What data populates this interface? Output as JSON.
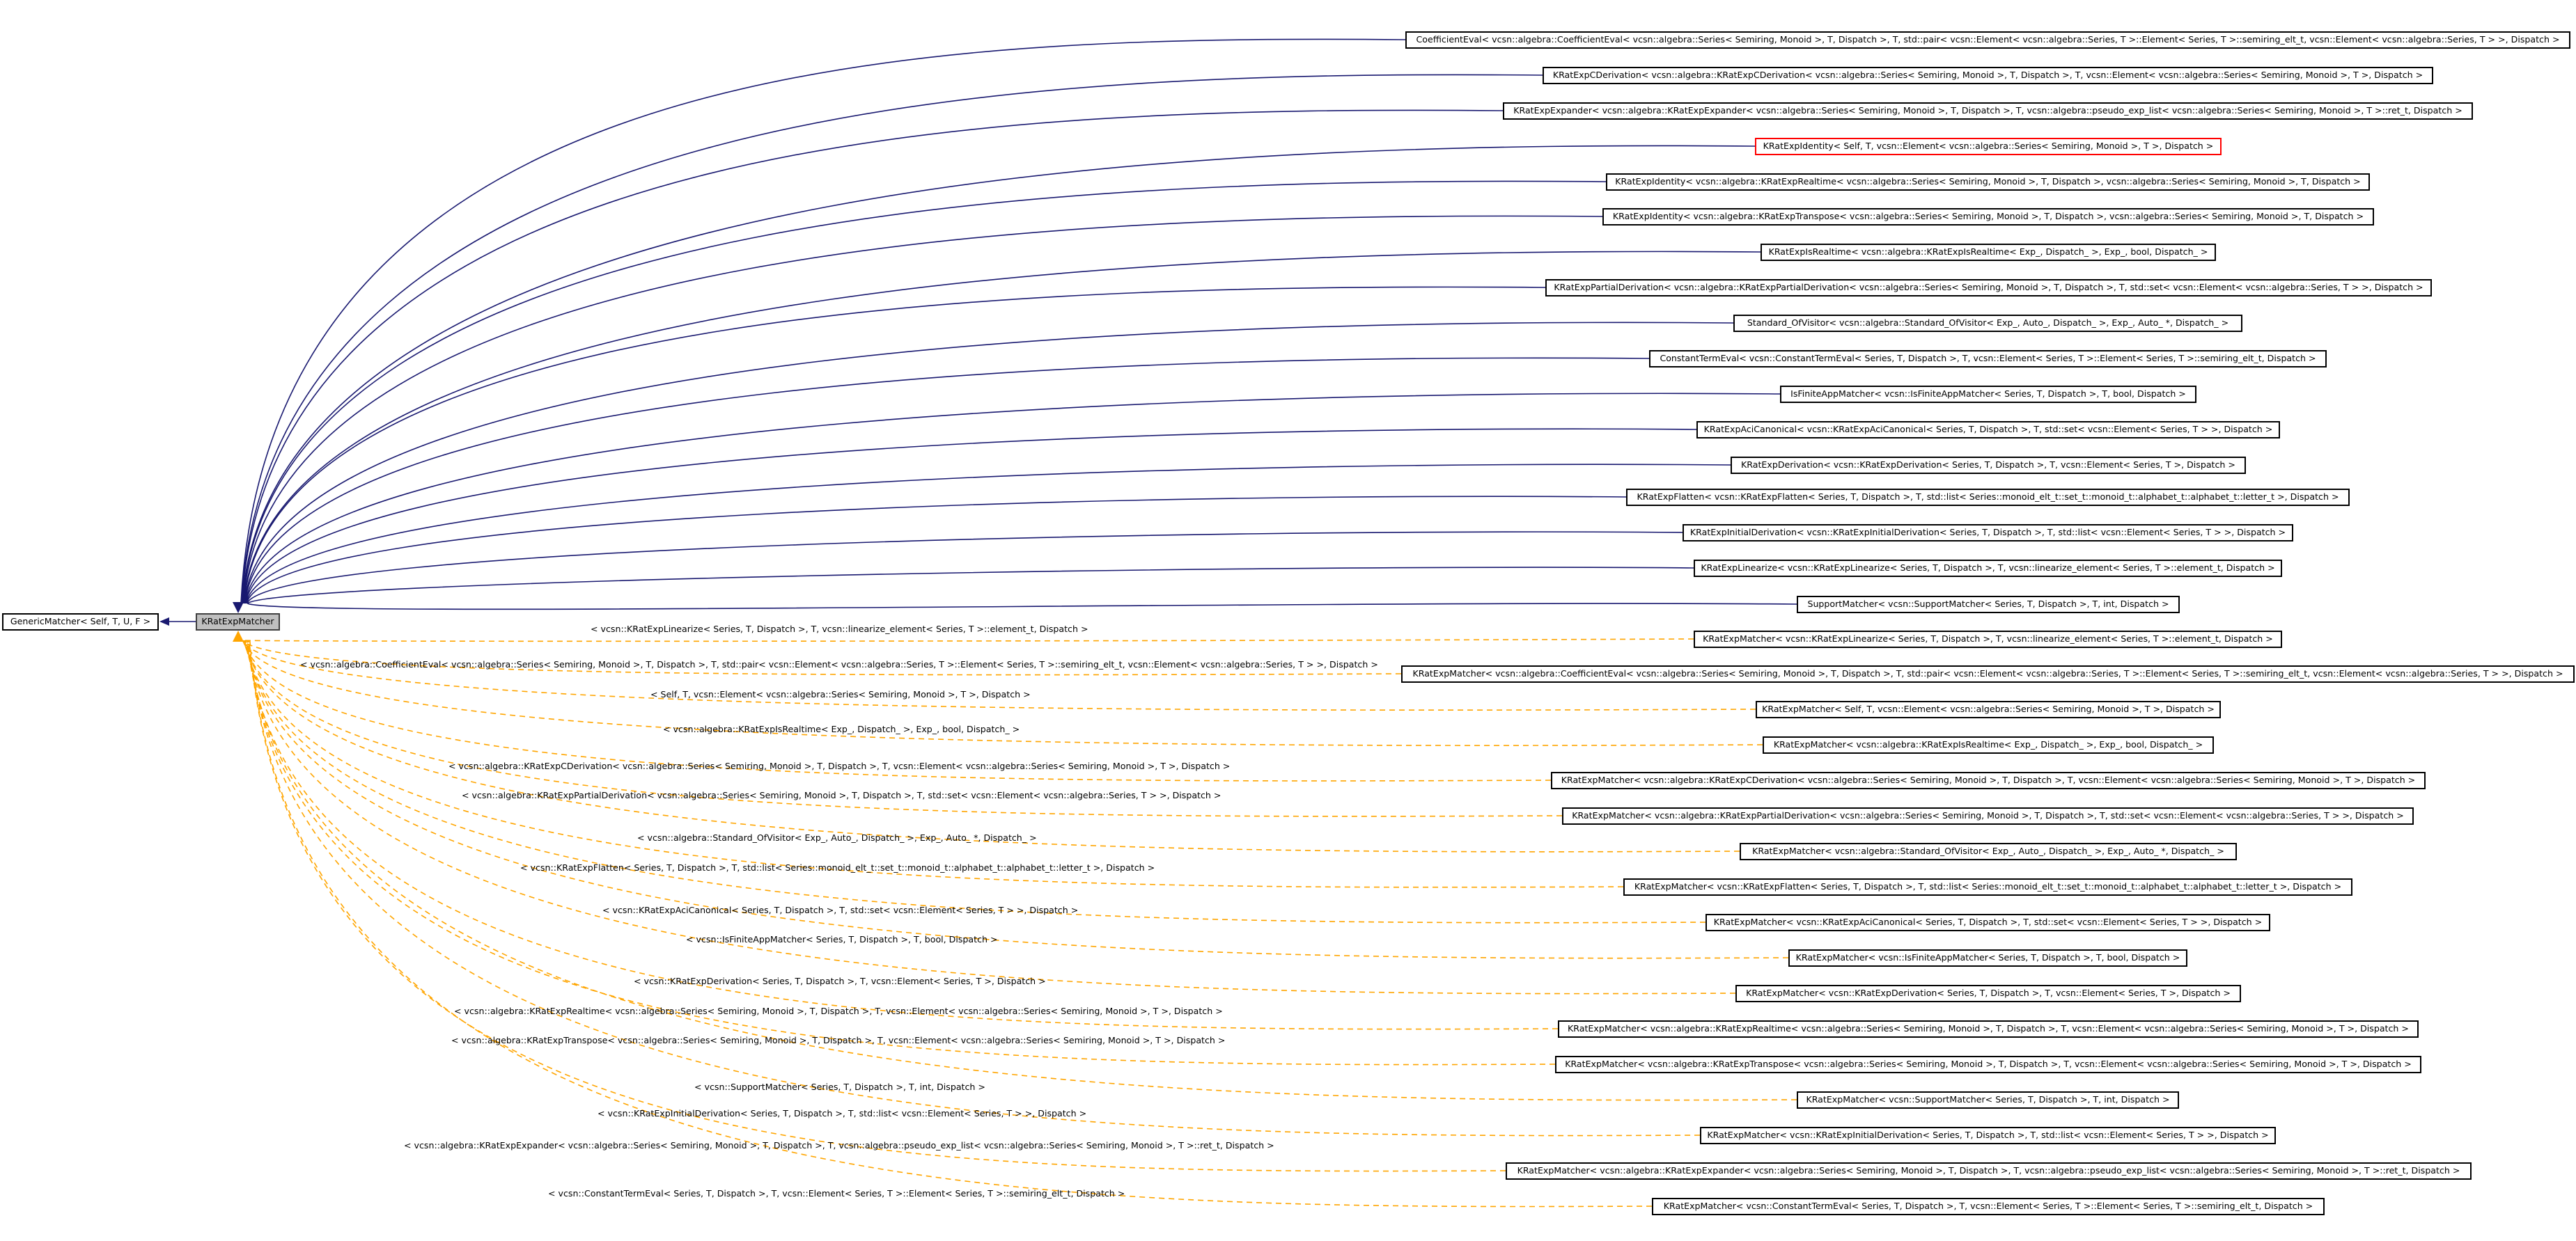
{
  "diagram": {
    "base_class": "GenericMatcher< Self, T, U, F >",
    "focus_class": "KRatExpMatcher",
    "derived": [
      "CoefficientEval< vcsn::algebra::CoefficientEval< vcsn::algebra::Series< Semiring, Monoid >, T, Dispatch >, T, std::pair< vcsn::Element< vcsn::algebra::Series, T >::Element< Series, T >::semiring_elt_t, vcsn::Element< vcsn::algebra::Series, T > >, Dispatch >",
      "KRatExpCDerivation< vcsn::algebra::KRatExpCDerivation< vcsn::algebra::Series< Semiring, Monoid >, T, Dispatch >, T, vcsn::Element< vcsn::algebra::Series< Semiring, Monoid >, T >, Dispatch >",
      "KRatExpExpander< vcsn::algebra::KRatExpExpander< vcsn::algebra::Series< Semiring, Monoid >, T, Dispatch >, T, vcsn::algebra::pseudo_exp_list< vcsn::algebra::Series< Semiring, Monoid >, T >::ret_t, Dispatch >",
      "KRatExpIdentity< Self, T, vcsn::Element< vcsn::algebra::Series< Semiring, Monoid >, T >, Dispatch >",
      "KRatExpIdentity< vcsn::algebra::KRatExpRealtime< vcsn::algebra::Series< Semiring, Monoid >, T, Dispatch >, vcsn::algebra::Series< Semiring, Monoid >, T, Dispatch >",
      "KRatExpIdentity< vcsn::algebra::KRatExpTranspose< vcsn::algebra::Series< Semiring, Monoid >, T, Dispatch >, vcsn::algebra::Series< Semiring, Monoid >, T, Dispatch >",
      "KRatExpIsRealtime< vcsn::algebra::KRatExpIsRealtime< Exp_, Dispatch_ >, Exp_, bool, Dispatch_ >",
      "KRatExpPartialDerivation< vcsn::algebra::KRatExpPartialDerivation< vcsn::algebra::Series< Semiring, Monoid >, T, Dispatch >, T, std::set< vcsn::Element< vcsn::algebra::Series, T > >, Dispatch >",
      "Standard_OfVisitor< vcsn::algebra::Standard_OfVisitor< Exp_, Auto_, Dispatch_ >, Exp_, Auto_ *, Dispatch_ >",
      "ConstantTermEval< vcsn::ConstantTermEval< Series, T, Dispatch >, T, vcsn::Element< Series, T >::Element< Series, T >::semiring_elt_t, Dispatch >",
      "IsFiniteAppMatcher< vcsn::IsFiniteAppMatcher< Series, T, Dispatch >, T, bool, Dispatch >",
      "KRatExpAciCanonical< vcsn::KRatExpAciCanonical< Series, T, Dispatch >, T, std::set< vcsn::Element< Series, T > >, Dispatch >",
      "KRatExpDerivation< vcsn::KRatExpDerivation< Series, T, Dispatch >, T, vcsn::Element< Series, T >, Dispatch >",
      "KRatExpFlatten< vcsn::KRatExpFlatten< Series, T, Dispatch >, T, std::list< Series::monoid_elt_t::set_t::monoid_t::alphabet_t::alphabet_t::letter_t >, Dispatch >",
      "KRatExpInitialDerivation< vcsn::KRatExpInitialDerivation< Series, T, Dispatch >, T, std::list< vcsn::Element< Series, T > >, Dispatch >",
      "KRatExpLinearize< vcsn::KRatExpLinearize< Series, T, Dispatch >, T, vcsn::linearize_element< Series, T >::element_t, Dispatch >",
      "SupportMatcher< vcsn::SupportMatcher< Series, T, Dispatch >, T, int, Dispatch >"
    ],
    "instances": [
      {
        "label": "< vcsn::KRatExpLinearize< Series, T, Dispatch >, T, vcsn::linearize_element< Series, T >::element_t, Dispatch >",
        "node": "KRatExpMatcher< vcsn::KRatExpLinearize< Series, T, Dispatch >, T, vcsn::linearize_element< Series, T >::element_t, Dispatch >"
      },
      {
        "label": "< vcsn::algebra::CoefficientEval< vcsn::algebra::Series< Semiring, Monoid >, T, Dispatch >, T, std::pair< vcsn::Element< vcsn::algebra::Series, T >::Element< Series, T >::semiring_elt_t, vcsn::Element< vcsn::algebra::Series, T > >, Dispatch >",
        "node": "KRatExpMatcher< vcsn::algebra::CoefficientEval< vcsn::algebra::Series< Semiring, Monoid >, T, Dispatch >, T, std::pair< vcsn::Element< vcsn::algebra::Series, T >::Element< Series, T >::semiring_elt_t, vcsn::Element< vcsn::algebra::Series, T > >, Dispatch >"
      },
      {
        "label": "< Self, T, vcsn::Element< vcsn::algebra::Series< Semiring, Monoid >, T >, Dispatch >",
        "node": "KRatExpMatcher< Self, T, vcsn::Element< vcsn::algebra::Series< Semiring, Monoid >, T >, Dispatch >"
      },
      {
        "label": "< vcsn::algebra::KRatExpIsRealtime< Exp_, Dispatch_ >, Exp_, bool, Dispatch_ >",
        "node": "KRatExpMatcher< vcsn::algebra::KRatExpIsRealtime< Exp_, Dispatch_ >, Exp_, bool, Dispatch_ >"
      },
      {
        "label": "< vcsn::algebra::KRatExpCDerivation< vcsn::algebra::Series< Semiring, Monoid >, T, Dispatch >, T, vcsn::Element< vcsn::algebra::Series< Semiring, Monoid >, T >, Dispatch >",
        "node": "KRatExpMatcher< vcsn::algebra::KRatExpCDerivation< vcsn::algebra::Series< Semiring, Monoid >, T, Dispatch >, T, vcsn::Element< vcsn::algebra::Series< Semiring, Monoid >, T >, Dispatch >"
      },
      {
        "label": "< vcsn::algebra::KRatExpPartialDerivation< vcsn::algebra::Series< Semiring, Monoid >, T, Dispatch >, T, std::set< vcsn::Element< vcsn::algebra::Series, T > >, Dispatch >",
        "node": "KRatExpMatcher< vcsn::algebra::KRatExpPartialDerivation< vcsn::algebra::Series< Semiring, Monoid >, T, Dispatch >, T, std::set< vcsn::Element< vcsn::algebra::Series, T > >, Dispatch >"
      },
      {
        "label": "< vcsn::algebra::Standard_OfVisitor< Exp_, Auto_, Dispatch_ >, Exp_, Auto_ *, Dispatch_ >",
        "node": "KRatExpMatcher< vcsn::algebra::Standard_OfVisitor< Exp_, Auto_, Dispatch_ >, Exp_, Auto_ *, Dispatch_ >"
      },
      {
        "label": "< vcsn::KRatExpFlatten< Series, T, Dispatch >, T, std::list< Series::monoid_elt_t::set_t::monoid_t::alphabet_t::alphabet_t::letter_t >, Dispatch >",
        "node": "KRatExpMatcher< vcsn::KRatExpFlatten< Series, T, Dispatch >, T, std::list< Series::monoid_elt_t::set_t::monoid_t::alphabet_t::alphabet_t::letter_t >, Dispatch >"
      },
      {
        "label": "< vcsn::KRatExpAciCanonical< Series, T, Dispatch >, T, std::set< vcsn::Element< Series, T > >, Dispatch >",
        "node": "KRatExpMatcher< vcsn::KRatExpAciCanonical< Series, T, Dispatch >, T, std::set< vcsn::Element< Series, T > >, Dispatch >"
      },
      {
        "label": "< vcsn::IsFiniteAppMatcher< Series, T, Dispatch >, T, bool, Dispatch >",
        "node": "KRatExpMatcher< vcsn::IsFiniteAppMatcher< Series, T, Dispatch >, T, bool, Dispatch >"
      },
      {
        "label": "< vcsn::KRatExpDerivation< Series, T, Dispatch >, T, vcsn::Element< Series, T >, Dispatch >",
        "node": "KRatExpMatcher< vcsn::KRatExpDerivation< Series, T, Dispatch >, T, vcsn::Element< Series, T >, Dispatch >"
      },
      {
        "label": "< vcsn::algebra::KRatExpRealtime< vcsn::algebra::Series< Semiring, Monoid >, T, Dispatch >, T, vcsn::Element< vcsn::algebra::Series< Semiring, Monoid >, T >, Dispatch >",
        "node": "KRatExpMatcher< vcsn::algebra::KRatExpRealtime< vcsn::algebra::Series< Semiring, Monoid >, T, Dispatch >, T, vcsn::Element< vcsn::algebra::Series< Semiring, Monoid >, T >, Dispatch >"
      },
      {
        "label": "< vcsn::algebra::KRatExpTranspose< vcsn::algebra::Series< Semiring, Monoid >, T, Dispatch >, T, vcsn::Element< vcsn::algebra::Series< Semiring, Monoid >, T >, Dispatch >",
        "node": "KRatExpMatcher< vcsn::algebra::KRatExpTranspose< vcsn::algebra::Series< Semiring, Monoid >, T, Dispatch >, T, vcsn::Element< vcsn::algebra::Series< Semiring, Monoid >, T >, Dispatch >"
      },
      {
        "label": "< vcsn::SupportMatcher< Series, T, Dispatch >, T, int, Dispatch >",
        "node": "KRatExpMatcher< vcsn::SupportMatcher< Series, T, Dispatch >, T, int, Dispatch >"
      },
      {
        "label": "< vcsn::KRatExpInitialDerivation< Series, T, Dispatch >, T, std::list< vcsn::Element< Series, T > >, Dispatch >",
        "node": "KRatExpMatcher< vcsn::KRatExpInitialDerivation< Series, T, Dispatch >, T, std::list< vcsn::Element< Series, T > >, Dispatch >"
      },
      {
        "label": "< vcsn::algebra::KRatExpExpander< vcsn::algebra::Series< Semiring, Monoid >, T, Dispatch >, T, vcsn::algebra::pseudo_exp_list< vcsn::algebra::Series< Semiring, Monoid >, T >::ret_t, Dispatch >",
        "node": "KRatExpMatcher< vcsn::algebra::KRatExpExpander< vcsn::algebra::Series< Semiring, Monoid >, T, Dispatch >, T, vcsn::algebra::pseudo_exp_list< vcsn::algebra::Series< Semiring, Monoid >, T >::ret_t, Dispatch >"
      },
      {
        "label": "< vcsn::ConstantTermEval< Series, T, Dispatch >, T, vcsn::Element< Series, T >::Element< Series, T >::semiring_elt_t, Dispatch >",
        "node": "KRatExpMatcher< vcsn::ConstantTermEval< Series, T, Dispatch >, T, vcsn::Element< Series, T >::Element< Series, T >::semiring_elt_t, Dispatch >"
      }
    ],
    "colors": {
      "inheritance_edge": "#191970",
      "template_edge": "#ffa500",
      "highlight_border": "#ff0000",
      "focus_fill": "#bfbfbf"
    }
  }
}
